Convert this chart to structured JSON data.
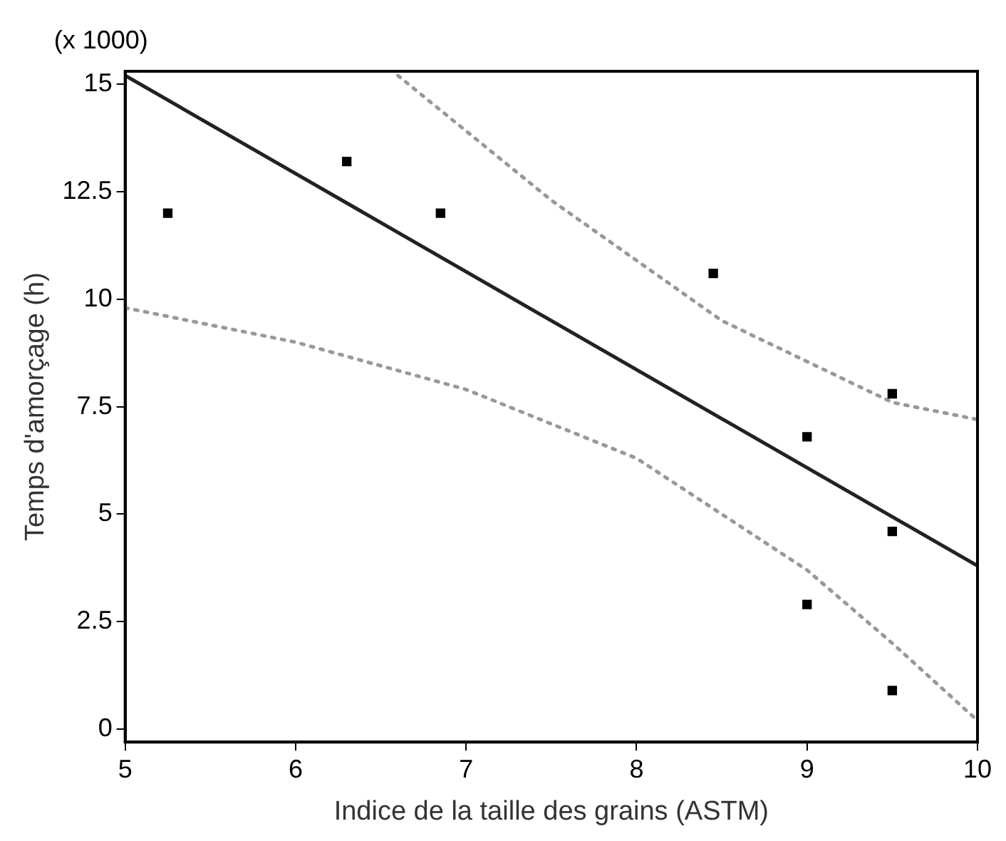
{
  "chart_data": {
    "type": "scatter",
    "xlabel": "Indice de la taille des grains (ASTM)",
    "ylabel": "Temps d'amorçage (h)",
    "annotations": [
      "(x 1000)"
    ],
    "xlim": [
      5,
      10
    ],
    "ylim": [
      -0.3,
      15.3
    ],
    "xticks": [
      5,
      6,
      7,
      8,
      9,
      10
    ],
    "yticks": [
      0,
      2.5,
      5,
      7.5,
      10,
      12.5,
      15
    ],
    "grid": false,
    "legend": false,
    "series": [
      {
        "type": "scatter",
        "color": "#000000",
        "marker": "square",
        "x": [
          5.25,
          6.3,
          6.85,
          8.45,
          9.0,
          9.5,
          9.5,
          9.0,
          9.5
        ],
        "values": [
          12,
          13.2,
          12,
          10.6,
          6.8,
          7.8,
          4.6,
          2.9,
          0.9
        ]
      },
      {
        "type": "line",
        "color": "#222222",
        "line_style": "solid",
        "marker": "none",
        "x": [
          5,
          10
        ],
        "values": [
          15.2,
          3.8
        ]
      },
      {
        "type": "line",
        "color": "#999999",
        "line_style": "dotted",
        "marker": "none",
        "x": [
          6.6,
          7.5,
          8.5,
          9.5,
          10
        ],
        "values": [
          15.2,
          12.3,
          9.5,
          7.6,
          7.2
        ]
      },
      {
        "type": "line",
        "color": "#999999",
        "line_style": "dotted",
        "marker": "none",
        "x": [
          5,
          6,
          7,
          8,
          9,
          9.5,
          10
        ],
        "values": [
          9.8,
          9.0,
          7.9,
          6.3,
          3.7,
          2.0,
          0.2
        ]
      }
    ]
  }
}
